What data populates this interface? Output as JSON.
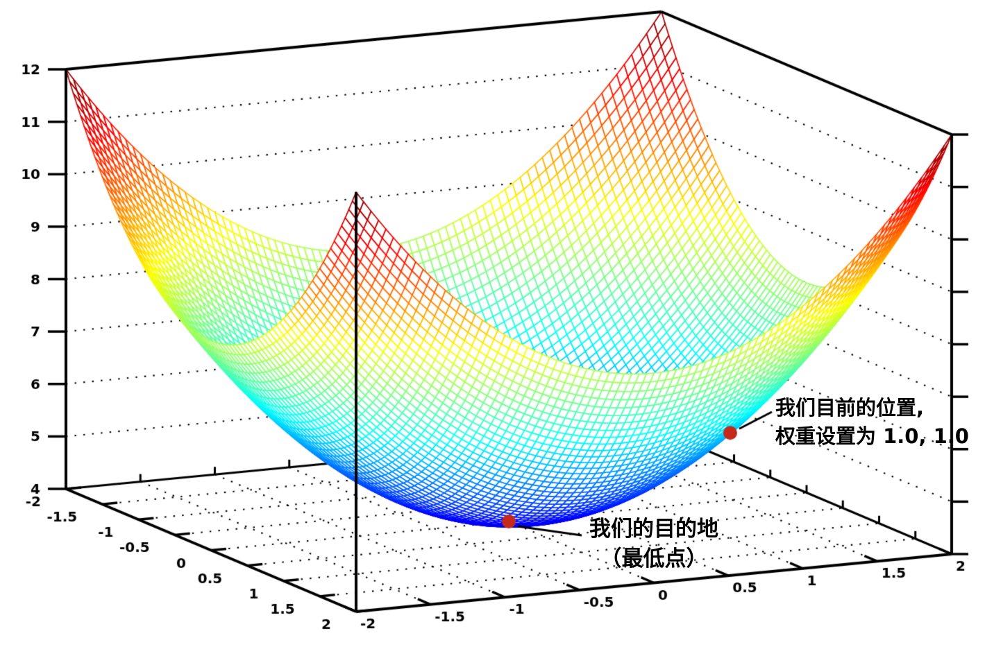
{
  "figure": {
    "background": "#ffffff",
    "title": ""
  },
  "chart_data": {
    "type": "surface",
    "function": "z = x^2 + y^2 + 4",
    "function_coeffs": {
      "x2": 1,
      "y2": 1,
      "c": 4
    },
    "x_range": [
      -2,
      2
    ],
    "y_range": [
      -2,
      2
    ],
    "z_range": [
      4,
      12
    ],
    "x_tick_labels": [
      "-2",
      "-1.5",
      "-1",
      "-0.5",
      "0",
      "0.5",
      "1",
      "1.5",
      "2"
    ],
    "y_tick_labels": [
      "-2",
      "-1.5",
      "-1",
      "-0.5",
      "0",
      "0.5",
      "1",
      "1.5",
      "2"
    ],
    "z_tick_labels": [
      "4",
      "5",
      "6",
      "7",
      "8",
      "9",
      "10",
      "11",
      "12"
    ],
    "z_grid_levels": [
      5,
      6,
      7,
      8,
      9,
      10,
      11
    ],
    "grid_divisions": 80,
    "colormap": "jet",
    "grid_style": "dotted",
    "legend": "none",
    "frame_color": "#000000",
    "marker_color": "#c5291b",
    "markers": [
      {
        "x": 0,
        "y": 0,
        "z": 4,
        "annotation": "destination"
      },
      {
        "x": 1,
        "y": 1,
        "z": 6,
        "annotation": "current_position"
      }
    ]
  },
  "annotations": {
    "destination": {
      "line1": "我们的目的地",
      "line2": "（最低点）"
    },
    "current_position": {
      "line1": "我们目前的位置,",
      "line2": "权重设置为 1.0, 1.0"
    }
  }
}
